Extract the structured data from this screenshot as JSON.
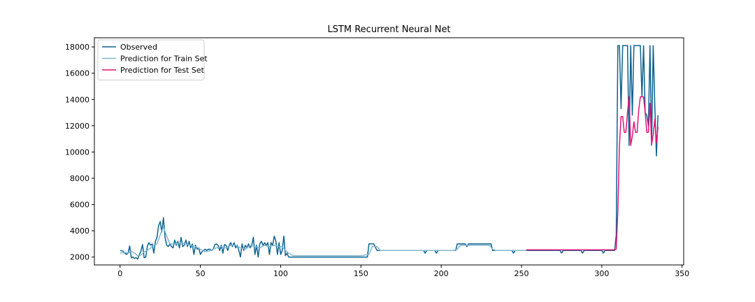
{
  "chart_data": {
    "type": "line",
    "title": "LSTM Recurrent Neural Net",
    "xlabel": "",
    "ylabel": "",
    "xlim": [
      -16,
      351
    ],
    "ylim": [
      1400,
      18700
    ],
    "xticks": [
      0,
      50,
      100,
      150,
      200,
      250,
      300,
      350
    ],
    "yticks": [
      2000,
      4000,
      6000,
      8000,
      10000,
      12000,
      14000,
      16000,
      18000
    ],
    "grid": false,
    "legend": "top-left",
    "series": [
      {
        "name": "Observed",
        "color": "#0c6291",
        "points": [
          [
            0,
            2500
          ],
          [
            2,
            2450
          ],
          [
            3,
            2300
          ],
          [
            4,
            2200
          ],
          [
            5,
            2300
          ],
          [
            6,
            2850
          ],
          [
            7,
            1950
          ],
          [
            8,
            2000
          ],
          [
            9,
            1900
          ],
          [
            10,
            1950
          ],
          [
            11,
            1850
          ],
          [
            12,
            2200
          ],
          [
            13,
            2450
          ],
          [
            14,
            2950
          ],
          [
            15,
            1950
          ],
          [
            16,
            2000
          ],
          [
            17,
            2850
          ],
          [
            18,
            3100
          ],
          [
            19,
            2900
          ],
          [
            20,
            3000
          ],
          [
            21,
            2300
          ],
          [
            22,
            3200
          ],
          [
            23,
            3500
          ],
          [
            24,
            4400
          ],
          [
            25,
            4700
          ],
          [
            26,
            3900
          ],
          [
            27,
            5000
          ],
          [
            28,
            3500
          ],
          [
            29,
            2900
          ],
          [
            30,
            2800
          ],
          [
            31,
            3000
          ],
          [
            32,
            2800
          ],
          [
            33,
            2700
          ],
          [
            34,
            3300
          ],
          [
            35,
            2900
          ],
          [
            36,
            3200
          ],
          [
            37,
            2700
          ],
          [
            38,
            3500
          ],
          [
            39,
            2800
          ],
          [
            40,
            2900
          ],
          [
            41,
            3300
          ],
          [
            42,
            2800
          ],
          [
            43,
            3200
          ],
          [
            44,
            2700
          ],
          [
            45,
            3000
          ],
          [
            46,
            2200
          ],
          [
            47,
            2900
          ],
          [
            48,
            2600
          ],
          [
            49,
            2700
          ],
          [
            50,
            2200
          ],
          [
            51,
            2400
          ],
          [
            52,
            2500
          ],
          [
            53,
            2600
          ],
          [
            54,
            2500
          ],
          [
            55,
            2600
          ],
          [
            56,
            2600
          ],
          [
            57,
            2500
          ],
          [
            58,
            2600
          ],
          [
            59,
            2950
          ],
          [
            60,
            3000
          ],
          [
            61,
            2900
          ],
          [
            62,
            2500
          ],
          [
            63,
            2900
          ],
          [
            64,
            2300
          ],
          [
            65,
            2950
          ],
          [
            66,
            2900
          ],
          [
            67,
            2500
          ],
          [
            68,
            2900
          ],
          [
            69,
            3100
          ],
          [
            70,
            2800
          ],
          [
            71,
            3100
          ],
          [
            72,
            2700
          ],
          [
            73,
            2900
          ],
          [
            74,
            2500
          ],
          [
            75,
            2000
          ],
          [
            76,
            3000
          ],
          [
            77,
            2500
          ],
          [
            78,
            2900
          ],
          [
            79,
            2700
          ],
          [
            80,
            3000
          ],
          [
            81,
            2700
          ],
          [
            82,
            2900
          ],
          [
            83,
            3500
          ],
          [
            84,
            2200
          ],
          [
            85,
            2900
          ],
          [
            86,
            2000
          ],
          [
            87,
            3000
          ],
          [
            88,
            3200
          ],
          [
            89,
            2900
          ],
          [
            90,
            3100
          ],
          [
            91,
            2900
          ],
          [
            92,
            3100
          ],
          [
            93,
            2200
          ],
          [
            94,
            3100
          ],
          [
            95,
            2900
          ],
          [
            96,
            3600
          ],
          [
            97,
            3200
          ],
          [
            98,
            2200
          ],
          [
            99,
            3100
          ],
          [
            100,
            2200
          ],
          [
            101,
            2500
          ],
          [
            102,
            3600
          ],
          [
            103,
            2100
          ],
          [
            104,
            2300
          ],
          [
            105,
            2000
          ],
          [
            106,
            2000
          ],
          [
            120,
            2000
          ],
          [
            150,
            2000
          ],
          [
            152,
            2000
          ],
          [
            154,
            2000
          ],
          [
            155,
            3000
          ],
          [
            158,
            3000
          ],
          [
            160,
            2500
          ],
          [
            185,
            2500
          ],
          [
            189,
            2500
          ],
          [
            190,
            2300
          ],
          [
            191,
            2500
          ],
          [
            196,
            2500
          ],
          [
            197,
            2300
          ],
          [
            198,
            2500
          ],
          [
            209,
            2500
          ],
          [
            210,
            3000
          ],
          [
            215,
            3000
          ],
          [
            216,
            2800
          ],
          [
            217,
            3000
          ],
          [
            231,
            3000
          ],
          [
            232,
            2500
          ],
          [
            244,
            2500
          ],
          [
            245,
            2300
          ],
          [
            246,
            2500
          ],
          [
            274,
            2500
          ],
          [
            275,
            2300
          ],
          [
            276,
            2500
          ],
          [
            287,
            2500
          ],
          [
            288,
            2300
          ],
          [
            289,
            2500
          ],
          [
            300,
            2500
          ],
          [
            301,
            2300
          ],
          [
            302,
            2500
          ],
          [
            308,
            2500
          ],
          [
            309,
            3700
          ],
          [
            310,
            18100
          ],
          [
            311,
            18100
          ],
          [
            312,
            13300
          ],
          [
            313,
            18100
          ],
          [
            314,
            18100
          ],
          [
            315,
            18100
          ],
          [
            316,
            18100
          ],
          [
            317,
            10500
          ],
          [
            318,
            18100
          ],
          [
            319,
            12800
          ],
          [
            320,
            18100
          ],
          [
            321,
            18100
          ],
          [
            322,
            18100
          ],
          [
            323,
            18100
          ],
          [
            324,
            18100
          ],
          [
            325,
            14200
          ],
          [
            326,
            18100
          ],
          [
            327,
            13000
          ],
          [
            328,
            12800
          ],
          [
            329,
            12000
          ],
          [
            330,
            18100
          ],
          [
            331,
            10500
          ],
          [
            332,
            18100
          ],
          [
            333,
            13500
          ],
          [
            334,
            9700
          ],
          [
            335,
            12800
          ]
        ]
      },
      {
        "name": "Prediction for Train Set",
        "color": "#7eb6cf",
        "points": [
          [
            0,
            2300
          ],
          [
            3,
            2350
          ],
          [
            5,
            2300
          ],
          [
            7,
            2450
          ],
          [
            9,
            2300
          ],
          [
            11,
            2100
          ],
          [
            13,
            2150
          ],
          [
            15,
            2400
          ],
          [
            17,
            2500
          ],
          [
            19,
            2700
          ],
          [
            21,
            2900
          ],
          [
            23,
            3000
          ],
          [
            25,
            3700
          ],
          [
            27,
            4300
          ],
          [
            29,
            3600
          ],
          [
            31,
            3000
          ],
          [
            33,
            3000
          ],
          [
            35,
            3000
          ],
          [
            38,
            3100
          ],
          [
            41,
            3000
          ],
          [
            44,
            2900
          ],
          [
            47,
            2800
          ],
          [
            50,
            2600
          ],
          [
            53,
            2400
          ],
          [
            56,
            2500
          ],
          [
            60,
            2700
          ],
          [
            63,
            2800
          ],
          [
            66,
            2700
          ],
          [
            69,
            2900
          ],
          [
            72,
            2900
          ],
          [
            75,
            2700
          ],
          [
            78,
            2600
          ],
          [
            81,
            2900
          ],
          [
            84,
            2800
          ],
          [
            87,
            2700
          ],
          [
            90,
            2900
          ],
          [
            93,
            2800
          ],
          [
            96,
            2900
          ],
          [
            99,
            2800
          ],
          [
            101,
            2800
          ],
          [
            103,
            2500
          ],
          [
            105,
            2300
          ],
          [
            108,
            2100
          ],
          [
            120,
            2100
          ],
          [
            150,
            2100
          ],
          [
            155,
            2200
          ],
          [
            157,
            2800
          ],
          [
            160,
            2800
          ],
          [
            162,
            2500
          ],
          [
            208,
            2500
          ],
          [
            210,
            2600
          ],
          [
            212,
            2900
          ],
          [
            215,
            2900
          ],
          [
            230,
            2900
          ],
          [
            232,
            2600
          ],
          [
            234,
            2500
          ],
          [
            253,
            2500
          ]
        ]
      },
      {
        "name": "Prediction for Test Set",
        "color": "#e0157a",
        "points": [
          [
            253,
            2550
          ],
          [
            300,
            2550
          ],
          [
            308,
            2550
          ],
          [
            309,
            2600
          ],
          [
            310,
            5500
          ],
          [
            311,
            10500
          ],
          [
            312,
            12700
          ],
          [
            313,
            12700
          ],
          [
            314,
            11500
          ],
          [
            315,
            11500
          ],
          [
            316,
            13000
          ],
          [
            317,
            14200
          ],
          [
            318,
            10500
          ],
          [
            319,
            11200
          ],
          [
            320,
            12300
          ],
          [
            321,
            11500
          ],
          [
            322,
            11500
          ],
          [
            323,
            13200
          ],
          [
            324,
            14200
          ],
          [
            325,
            14200
          ],
          [
            326,
            14200
          ],
          [
            327,
            13000
          ],
          [
            328,
            11500
          ],
          [
            329,
            11500
          ],
          [
            330,
            13700
          ],
          [
            331,
            10600
          ],
          [
            332,
            11300
          ],
          [
            333,
            12500
          ],
          [
            334,
            10700
          ],
          [
            335,
            11900
          ]
        ]
      }
    ]
  }
}
